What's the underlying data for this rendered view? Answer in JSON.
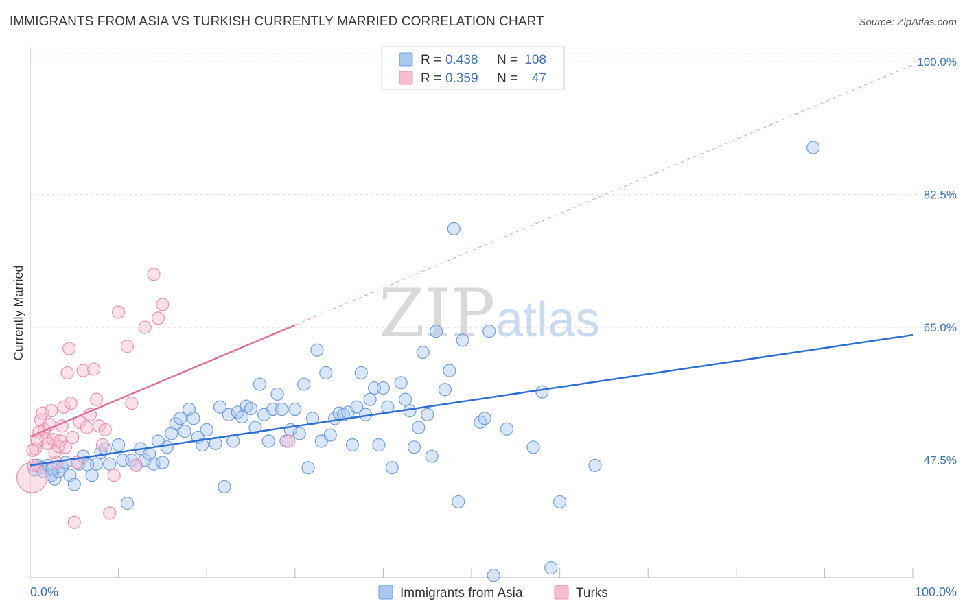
{
  "title": "IMMIGRANTS FROM ASIA VS TURKISH CURRENTLY MARRIED CORRELATION CHART",
  "source": "Source: ZipAtlas.com",
  "watermark": {
    "zip": "ZIP",
    "atlas": "atlas"
  },
  "colors": {
    "blue_fill": "#a8c8f0",
    "blue_stroke": "#6e9ee0",
    "blue_line": "#2a6fd1",
    "pink_fill": "#f8bcd0",
    "pink_stroke": "#ec8fb0",
    "pink_line": "#e0709a",
    "grid": "#dddddd",
    "axis": "#bbbbbb"
  },
  "legend": {
    "rows": [
      {
        "r_label": "R = ",
        "r_value": "0.438",
        "n_label": "N = ",
        "n_value": "108"
      },
      {
        "r_label": "R = ",
        "r_value": "0.359",
        "n_label": "N = ",
        "n_value": "47"
      }
    ]
  },
  "chart_data": {
    "type": "scatter",
    "title": "IMMIGRANTS FROM ASIA VS TURKISH CURRENTLY MARRIED CORRELATION CHART",
    "xlabel": "",
    "ylabel": "Currently Married",
    "xlim": [
      0,
      100
    ],
    "ylim": [
      32,
      102
    ],
    "x_tick_labels": [
      "0.0%",
      "100.0%"
    ],
    "y_ticks": [
      47.5,
      65.0,
      82.5,
      100.0
    ],
    "y_tick_labels": [
      "47.5%",
      "65.0%",
      "82.5%",
      "100.0%"
    ],
    "grid": true,
    "legend_position": "bottom",
    "series": [
      {
        "name": "Immigrants from Asia",
        "color": "#a8c8f0",
        "trend": {
          "x": [
            0,
            100
          ],
          "y": [
            46.8,
            64.0
          ]
        },
        "points": [
          [
            0.5,
            46.2
          ],
          [
            0.8,
            46.8
          ],
          [
            1.2,
            46.5
          ],
          [
            1.5,
            46.0
          ],
          [
            2.0,
            46.8
          ],
          [
            2.4,
            45.5
          ],
          [
            2.8,
            45.0
          ],
          [
            3.2,
            46.0
          ],
          [
            3.6,
            46.6
          ],
          [
            4.0,
            47.2
          ],
          [
            4.5,
            45.5
          ],
          [
            5.0,
            44.3
          ],
          [
            5.5,
            47.0
          ],
          [
            6.0,
            48.0
          ],
          [
            7.0,
            45.5
          ],
          [
            7.5,
            47.0
          ],
          [
            8.0,
            48.5
          ],
          [
            8.5,
            49.0
          ],
          [
            9.0,
            47.0
          ],
          [
            10.0,
            49.5
          ],
          [
            10.5,
            47.5
          ],
          [
            11.0,
            41.8
          ],
          [
            11.5,
            47.5
          ],
          [
            12.0,
            46.8
          ],
          [
            12.5,
            49.0
          ],
          [
            13.0,
            47.5
          ],
          [
            13.5,
            48.3
          ],
          [
            14.0,
            47.0
          ],
          [
            14.5,
            50.0
          ],
          [
            15.0,
            47.2
          ],
          [
            15.5,
            49.2
          ],
          [
            16.0,
            51.0
          ],
          [
            16.5,
            52.3
          ],
          [
            17.0,
            53.0
          ],
          [
            17.5,
            51.3
          ],
          [
            18.0,
            54.2
          ],
          [
            18.5,
            53.0
          ],
          [
            19.0,
            50.5
          ],
          [
            19.5,
            49.5
          ],
          [
            20.0,
            51.5
          ],
          [
            21.0,
            49.7
          ],
          [
            21.5,
            54.5
          ],
          [
            22.0,
            44.0
          ],
          [
            22.5,
            53.5
          ],
          [
            23.0,
            50.0
          ],
          [
            23.5,
            53.8
          ],
          [
            24.0,
            53.2
          ],
          [
            24.5,
            54.6
          ],
          [
            25.0,
            54.3
          ],
          [
            25.5,
            51.8
          ],
          [
            26.0,
            57.5
          ],
          [
            26.5,
            53.5
          ],
          [
            27.0,
            50.0
          ],
          [
            27.5,
            54.2
          ],
          [
            28.0,
            56.2
          ],
          [
            28.5,
            54.2
          ],
          [
            29.0,
            50.0
          ],
          [
            29.5,
            51.5
          ],
          [
            30.0,
            54.2
          ],
          [
            30.5,
            51.0
          ],
          [
            31.0,
            57.5
          ],
          [
            31.5,
            46.5
          ],
          [
            32.0,
            53.0
          ],
          [
            32.5,
            62.0
          ],
          [
            33.0,
            50.0
          ],
          [
            33.5,
            59.0
          ],
          [
            34.0,
            50.8
          ],
          [
            34.5,
            53.0
          ],
          [
            35.0,
            53.7
          ],
          [
            35.5,
            53.5
          ],
          [
            36.0,
            53.8
          ],
          [
            36.5,
            49.5
          ],
          [
            37.0,
            54.5
          ],
          [
            37.5,
            59.0
          ],
          [
            38.0,
            53.5
          ],
          [
            38.5,
            55.5
          ],
          [
            39.0,
            57.0
          ],
          [
            39.5,
            49.5
          ],
          [
            40.0,
            57.0
          ],
          [
            40.5,
            54.5
          ],
          [
            41.0,
            46.5
          ],
          [
            42.0,
            57.7
          ],
          [
            42.5,
            55.5
          ],
          [
            43.0,
            54.0
          ],
          [
            43.5,
            49.2
          ],
          [
            44.0,
            51.8
          ],
          [
            44.5,
            61.7
          ],
          [
            45.0,
            53.5
          ],
          [
            45.5,
            48.0
          ],
          [
            46.0,
            64.5
          ],
          [
            47.0,
            56.8
          ],
          [
            47.5,
            59.3
          ],
          [
            48.0,
            78.0
          ],
          [
            48.5,
            42.0
          ],
          [
            49.0,
            63.3
          ],
          [
            51.0,
            52.5
          ],
          [
            51.5,
            53.0
          ],
          [
            52.0,
            64.5
          ],
          [
            52.5,
            32.3
          ],
          [
            54.0,
            51.6
          ],
          [
            57.0,
            49.2
          ],
          [
            58.0,
            56.5
          ],
          [
            59.0,
            33.3
          ],
          [
            60.0,
            42.0
          ],
          [
            64.0,
            46.8
          ],
          [
            88.7,
            88.7
          ],
          [
            2.5,
            46.3
          ],
          [
            6.5,
            46.9
          ]
        ]
      },
      {
        "name": "Turks",
        "color": "#f8bcd0",
        "trend": {
          "x": [
            0,
            30
          ],
          "y": [
            50.6,
            65.3
          ]
        },
        "points": [
          [
            0.2,
            45.2
          ],
          [
            0.4,
            46.8
          ],
          [
            0.6,
            49.0
          ],
          [
            0.8,
            50.0
          ],
          [
            1.0,
            51.2
          ],
          [
            1.2,
            52.8
          ],
          [
            1.4,
            53.7
          ],
          [
            1.6,
            51.5
          ],
          [
            1.8,
            50.3
          ],
          [
            2.0,
            49.7
          ],
          [
            2.2,
            52.2
          ],
          [
            2.4,
            54.0
          ],
          [
            2.6,
            50.2
          ],
          [
            2.8,
            48.5
          ],
          [
            3.0,
            47.2
          ],
          [
            3.2,
            49.3
          ],
          [
            3.4,
            50.0
          ],
          [
            3.6,
            52.0
          ],
          [
            3.8,
            54.5
          ],
          [
            4.0,
            49.2
          ],
          [
            4.2,
            59.0
          ],
          [
            4.4,
            62.2
          ],
          [
            4.6,
            55.0
          ],
          [
            4.8,
            50.5
          ],
          [
            5.0,
            39.3
          ],
          [
            5.3,
            47.2
          ],
          [
            5.6,
            52.5
          ],
          [
            6.0,
            59.3
          ],
          [
            6.4,
            51.8
          ],
          [
            6.8,
            53.5
          ],
          [
            7.2,
            59.5
          ],
          [
            7.5,
            55.5
          ],
          [
            7.8,
            52.0
          ],
          [
            8.2,
            49.5
          ],
          [
            8.5,
            51.5
          ],
          [
            9.0,
            40.5
          ],
          [
            9.5,
            45.5
          ],
          [
            10.0,
            67.0
          ],
          [
            11.0,
            62.5
          ],
          [
            11.5,
            55.0
          ],
          [
            12.0,
            46.8
          ],
          [
            13.0,
            65.0
          ],
          [
            14.0,
            72.0
          ],
          [
            14.5,
            66.2
          ],
          [
            15.0,
            68.0
          ],
          [
            29.3,
            50.0
          ],
          [
            0.3,
            48.8
          ]
        ]
      }
    ]
  },
  "bottom_legend": [
    {
      "label": "Immigrants from Asia"
    },
    {
      "label": "Turks"
    }
  ]
}
